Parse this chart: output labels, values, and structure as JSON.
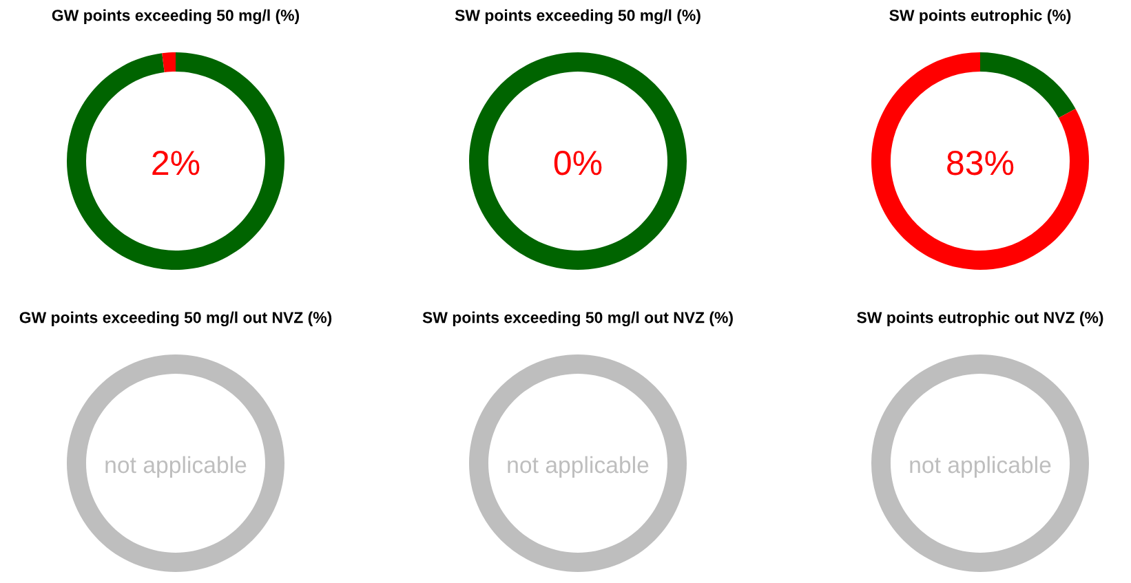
{
  "chart_data": [
    {
      "type": "donut",
      "title": "GW points exceeding 50 mg/l (%)",
      "categories": [
        null,
        null
      ],
      "values": [
        98,
        2
      ],
      "colors": [
        "#006400",
        "#ff0000"
      ],
      "annotations": [
        "2%"
      ]
    },
    {
      "type": "donut",
      "title": "SW points exceeding 50 mg/l (%)",
      "categories": [
        null,
        null
      ],
      "values": [
        100,
        0
      ],
      "colors": [
        "#006400",
        "#ff0000"
      ],
      "annotations": [
        "0%"
      ]
    },
    {
      "type": "donut",
      "title": "SW points eutrophic (%)",
      "categories": [
        null,
        null
      ],
      "values": [
        17,
        83
      ],
      "colors": [
        "#006400",
        "#ff0000"
      ],
      "annotations": [
        "83%"
      ]
    },
    {
      "type": "donut",
      "title": "GW points exceeding 50 mg/l out NVZ (%)",
      "categories": [
        null
      ],
      "values": [
        100
      ],
      "colors": [
        "#bebebe"
      ],
      "annotations": [
        "not applicable"
      ]
    },
    {
      "type": "donut",
      "title": "SW points exceeding 50 mg/l out NVZ (%)",
      "categories": [
        null
      ],
      "values": [
        100
      ],
      "colors": [
        "#bebebe"
      ],
      "annotations": [
        "not applicable"
      ]
    },
    {
      "type": "donut",
      "title": "SW points eutrophic out NVZ (%)",
      "categories": [
        null
      ],
      "values": [
        100
      ],
      "colors": [
        "#bebebe"
      ],
      "annotations": [
        "not applicable"
      ]
    }
  ]
}
